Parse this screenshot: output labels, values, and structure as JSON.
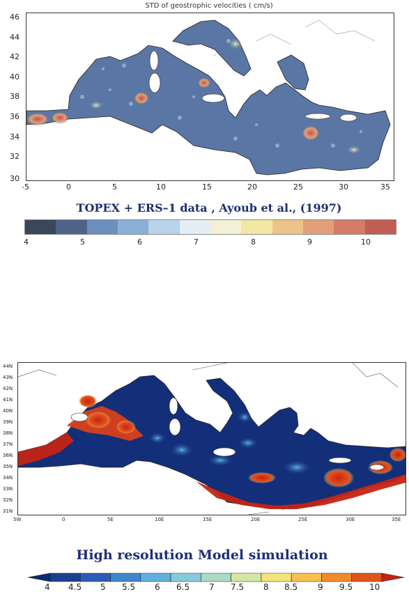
{
  "panel_top": {
    "title": "STD of geostrophic velocities  ( cm/s)",
    "y_ticks": [
      "46",
      "44",
      "42",
      "40",
      "38",
      "36",
      "34",
      "32",
      "30"
    ],
    "x_ticks": [
      "-5",
      "0",
      "5",
      "10",
      "15",
      "20",
      "25",
      "30",
      "35"
    ],
    "caption": "TOPEX + ERS–1 data , Ayoub et al., (1997)",
    "colorbar": {
      "labels": [
        "4",
        "5",
        "6",
        "7",
        "8",
        "9",
        "10"
      ],
      "colors": [
        "#3b4658",
        "#4d6487",
        "#6d8fbd",
        "#8bb0d8",
        "#b8d3ea",
        "#e4eef5",
        "#f3f0d6",
        "#f3e7a4",
        "#edc487",
        "#e2a07a",
        "#d47b69",
        "#c05e55"
      ]
    }
  },
  "panel_bottom": {
    "y_ticks": [
      "44N",
      "43N",
      "42N",
      "41N",
      "40N",
      "39N",
      "38N",
      "37N",
      "36N",
      "35N",
      "34N",
      "33N",
      "32N",
      "31N"
    ],
    "x_ticks": [
      "5W",
      "0",
      "5E",
      "10E",
      "15E",
      "20E",
      "25E",
      "30E",
      "35E"
    ],
    "caption": "High resolution Model simulation",
    "colorbar": {
      "labels": [
        "4",
        "4.5",
        "5",
        "5.5",
        "6",
        "6.5",
        "7",
        "7.5",
        "8",
        "8.5",
        "9",
        "9.5",
        "10"
      ],
      "colors": [
        "#0d2a6e",
        "#1b3f91",
        "#2a5eb6",
        "#3f86cf",
        "#5fb0dd",
        "#86cbdb",
        "#abd9c3",
        "#d4e6a1",
        "#f3e47a",
        "#f7c04c",
        "#f08a2c",
        "#e2531c",
        "#c42414"
      ]
    }
  }
}
